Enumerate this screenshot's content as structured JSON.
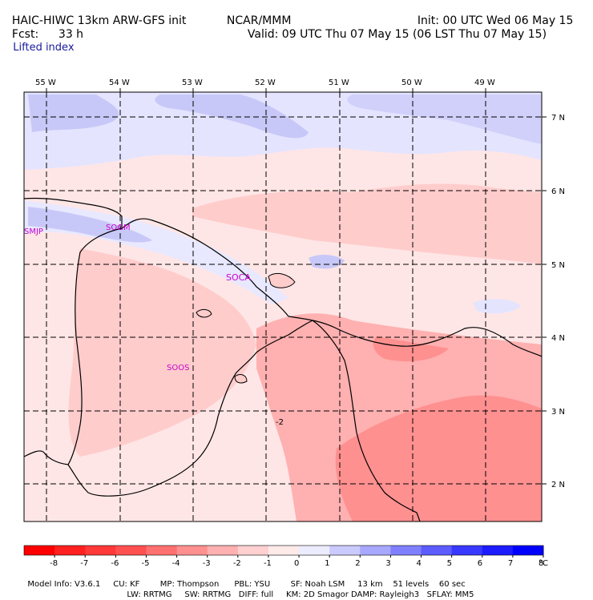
{
  "header": {
    "model_title": "HAIC-HIWC 13km ARW-GFS init",
    "institute": "NCAR/MMM",
    "init": "Init: 00 UTC Wed 06 May 15",
    "fcst_label": "Fcst:",
    "fcst_value": "33 h",
    "valid": "Valid: 09 UTC Thu 07 May 15 (06 LST Thu 07 May 15)",
    "field": "Lifted index"
  },
  "map": {
    "lon_labels": [
      "55 W",
      "54 W",
      "53 W",
      "52 W",
      "51 W",
      "50 W",
      "49 W"
    ],
    "lat_labels": [
      "7 N",
      "6 N",
      "5 N",
      "4 N",
      "3 N",
      "2 N"
    ],
    "stations": [
      "SMJP",
      "SOGM",
      "SOCA",
      "SOOS"
    ],
    "contour_label": "-2",
    "colors": {
      "coast": "#000000",
      "grid": "#000000",
      "station": "#cc00cc"
    }
  },
  "colorbar": {
    "ticks": [
      "-8",
      "-7",
      "-6",
      "-5",
      "-4",
      "-3",
      "-2",
      "-1",
      "0",
      "1",
      "2",
      "3",
      "4",
      "5",
      "6",
      "7",
      "8"
    ],
    "unit": "°C",
    "colors": [
      "#ff0000",
      "#ff2020",
      "#ff3838",
      "#ff5050",
      "#ff7070",
      "#ff9090",
      "#ffb0b0",
      "#ffd0d0",
      "#ffeaea",
      "#ececff",
      "#cacaff",
      "#a8a8ff",
      "#8080ff",
      "#5c5cff",
      "#3838ff",
      "#1c1cff",
      "#0000ff"
    ]
  },
  "footer": {
    "line1": "Model Info: V3.6.1     CU: KF        MP: Thompson      PBL: YSU        SF: Noah LSM     13 km    51 levels    60 sec",
    "line2": "LW: RRTMG     SW: RRTMG   DIFF: full     KM: 2D Smagor DAMP: Rayleigh3   SFLAY: MM5"
  }
}
